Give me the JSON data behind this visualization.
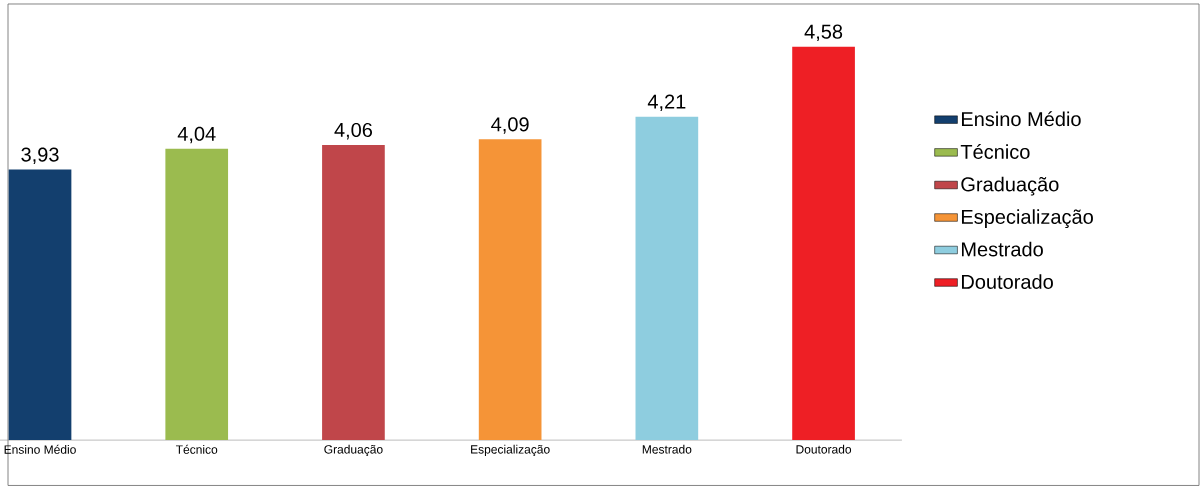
{
  "chart_data": {
    "type": "bar",
    "categories": [
      "Ensino Médio",
      "Técnico",
      "Graduação",
      "Especialização",
      "Mestrado",
      "Doutorado"
    ],
    "series": [
      {
        "name": "Ensino Médio",
        "color": "#133f6e",
        "values": [
          3.93,
          null,
          null,
          null,
          null,
          null
        ],
        "value_labels": [
          "3,93",
          null,
          null,
          null,
          null,
          null
        ]
      },
      {
        "name": "Técnico",
        "color": "#9bbb4f",
        "values": [
          null,
          4.04,
          null,
          null,
          null,
          null
        ],
        "value_labels": [
          null,
          "4,04",
          null,
          null,
          null,
          null
        ]
      },
      {
        "name": "Graduação",
        "color": "#c0464a",
        "values": [
          null,
          null,
          4.06,
          null,
          null,
          null
        ],
        "value_labels": [
          null,
          null,
          "4,06",
          null,
          null,
          null
        ]
      },
      {
        "name": "Especialização",
        "color": "#f59437",
        "values": [
          null,
          null,
          null,
          4.09,
          null,
          null
        ],
        "value_labels": [
          null,
          null,
          null,
          "4,09",
          null,
          null
        ]
      },
      {
        "name": "Mestrado",
        "color": "#8ecddf",
        "values": [
          null,
          null,
          null,
          null,
          4.21,
          null
        ],
        "value_labels": [
          null,
          null,
          null,
          null,
          "4,21",
          null
        ]
      },
      {
        "name": "Doutorado",
        "color": "#ee1f25",
        "values": [
          null,
          null,
          null,
          null,
          null,
          4.58
        ],
        "value_labels": [
          null,
          null,
          null,
          null,
          null,
          "4,58"
        ]
      }
    ],
    "ylim": [
      2.5,
      4.58
    ],
    "legend": "right"
  }
}
